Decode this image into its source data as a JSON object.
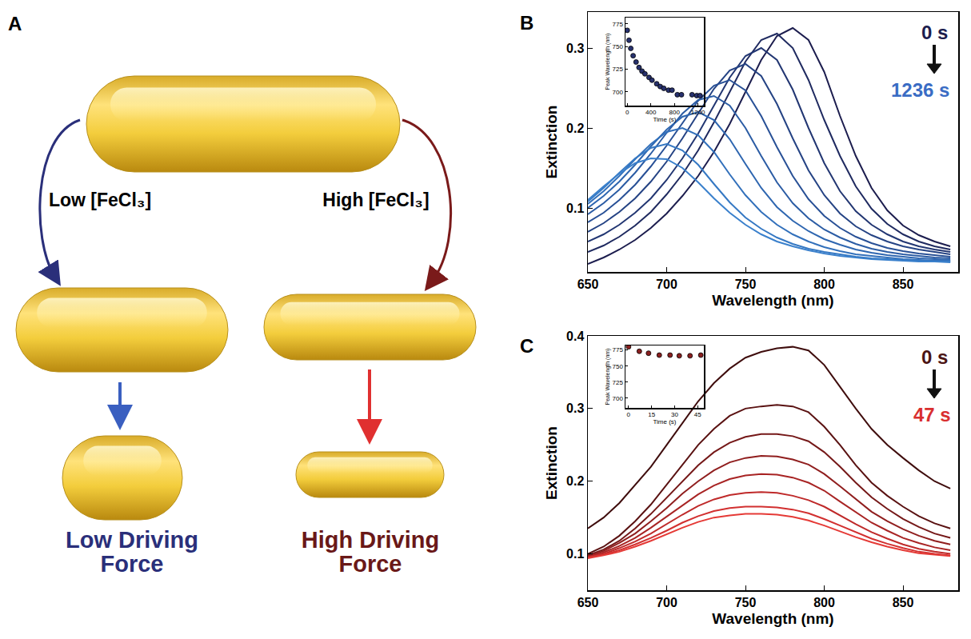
{
  "diagram": {
    "panel": "A",
    "labels": {
      "left_arrow": "Low [FeCl₃]",
      "right_arrow": "High [FeCl₃]",
      "left_result": "Low Driving Force",
      "right_result": "High Driving Force"
    }
  },
  "chart_data": [
    {
      "type": "line",
      "panel": "B",
      "xlabel": "Wavelength (nm)",
      "ylabel": "Extinction",
      "x": [
        650,
        660,
        670,
        680,
        690,
        700,
        710,
        720,
        730,
        740,
        750,
        760,
        770,
        780,
        790,
        800,
        810,
        820,
        830,
        840,
        850,
        860,
        870,
        880
      ],
      "xlim": [
        650,
        885
      ],
      "xticks": [
        650,
        700,
        750,
        800,
        850
      ],
      "ylim": [
        0.02,
        0.345
      ],
      "yticks": [
        0.1,
        0.2,
        0.3
      ],
      "grid": false,
      "series": [
        {
          "color": "#1c1d4e",
          "values": [
            0.03,
            0.038,
            0.048,
            0.06,
            0.075,
            0.093,
            0.115,
            0.14,
            0.17,
            0.205,
            0.245,
            0.285,
            0.315,
            0.325,
            0.31,
            0.27,
            0.215,
            0.165,
            0.125,
            0.097,
            0.078,
            0.066,
            0.058,
            0.052
          ]
        },
        {
          "color": "#1f2a60",
          "values": [
            0.045,
            0.053,
            0.064,
            0.078,
            0.095,
            0.117,
            0.142,
            0.172,
            0.207,
            0.245,
            0.283,
            0.31,
            0.318,
            0.3,
            0.26,
            0.21,
            0.165,
            0.127,
            0.099,
            0.08,
            0.067,
            0.058,
            0.052,
            0.048
          ]
        },
        {
          "color": "#223672",
          "values": [
            0.058,
            0.067,
            0.079,
            0.094,
            0.112,
            0.135,
            0.162,
            0.193,
            0.228,
            0.263,
            0.29,
            0.3,
            0.285,
            0.248,
            0.2,
            0.156,
            0.121,
            0.096,
            0.079,
            0.067,
            0.058,
            0.052,
            0.048,
            0.045
          ]
        },
        {
          "color": "#254384",
          "values": [
            0.07,
            0.081,
            0.095,
            0.112,
            0.133,
            0.158,
            0.187,
            0.218,
            0.249,
            0.272,
            0.28,
            0.265,
            0.23,
            0.187,
            0.147,
            0.116,
            0.093,
            0.077,
            0.066,
            0.058,
            0.052,
            0.048,
            0.045,
            0.042
          ]
        },
        {
          "color": "#285096",
          "values": [
            0.082,
            0.094,
            0.11,
            0.129,
            0.152,
            0.178,
            0.206,
            0.234,
            0.253,
            0.26,
            0.247,
            0.215,
            0.176,
            0.14,
            0.111,
            0.09,
            0.075,
            0.064,
            0.056,
            0.05,
            0.046,
            0.043,
            0.041,
            0.039
          ]
        },
        {
          "color": "#2b5ca4",
          "values": [
            0.092,
            0.106,
            0.123,
            0.144,
            0.168,
            0.194,
            0.218,
            0.235,
            0.24,
            0.228,
            0.2,
            0.165,
            0.132,
            0.106,
            0.087,
            0.073,
            0.063,
            0.055,
            0.049,
            0.045,
            0.042,
            0.04,
            0.038,
            0.037
          ]
        },
        {
          "color": "#2e66b0",
          "values": [
            0.1,
            0.115,
            0.133,
            0.154,
            0.177,
            0.198,
            0.214,
            0.22,
            0.21,
            0.186,
            0.155,
            0.125,
            0.101,
            0.084,
            0.071,
            0.061,
            0.054,
            0.048,
            0.044,
            0.041,
            0.039,
            0.037,
            0.036,
            0.035
          ]
        },
        {
          "color": "#3270bb",
          "values": [
            0.105,
            0.121,
            0.14,
            0.161,
            0.18,
            0.195,
            0.2,
            0.191,
            0.17,
            0.142,
            0.116,
            0.095,
            0.079,
            0.067,
            0.058,
            0.051,
            0.046,
            0.042,
            0.04,
            0.038,
            0.036,
            0.035,
            0.034,
            0.034
          ]
        },
        {
          "color": "#3578c3",
          "values": [
            0.108,
            0.125,
            0.144,
            0.162,
            0.175,
            0.18,
            0.172,
            0.154,
            0.13,
            0.107,
            0.088,
            0.074,
            0.063,
            0.055,
            0.049,
            0.045,
            0.042,
            0.039,
            0.037,
            0.036,
            0.035,
            0.034,
            0.033,
            0.033
          ]
        },
        {
          "color": "#3a80cc",
          "values": [
            0.11,
            0.127,
            0.143,
            0.156,
            0.162,
            0.161,
            0.15,
            0.132,
            0.112,
            0.094,
            0.079,
            0.067,
            0.058,
            0.052,
            0.047,
            0.043,
            0.04,
            0.038,
            0.036,
            0.035,
            0.034,
            0.033,
            0.033,
            0.032
          ]
        }
      ],
      "annotations": [
        {
          "text": "0 s",
          "color": "#1c1d4e"
        },
        {
          "text": "1236 s",
          "color": "#3a6cc4"
        }
      ],
      "inset": {
        "type": "scatter",
        "xlabel": "Time (s)",
        "ylabel": "Peak Wavelength (nm)",
        "x": [
          0,
          30,
          60,
          100,
          150,
          200,
          250,
          300,
          370,
          420,
          500,
          560,
          620,
          700,
          760,
          850,
          920,
          1100,
          1180,
          1236
        ],
        "values": [
          768,
          757,
          748,
          740,
          733,
          727,
          723,
          720,
          716,
          713,
          709,
          706,
          704,
          702,
          702,
          697,
          697,
          697,
          696,
          696
        ],
        "color": "#27316e",
        "marker": "circle",
        "xlim": [
          -30,
          1300
        ],
        "xticks": [
          0,
          400,
          800,
          1200
        ],
        "ylim": [
          685,
          782
        ],
        "yticks": [
          700,
          725,
          750,
          775
        ],
        "grid": false
      }
    },
    {
      "type": "line",
      "panel": "C",
      "xlabel": "Wavelength (nm)",
      "ylabel": "Extinction",
      "x": [
        650,
        660,
        670,
        680,
        690,
        700,
        710,
        720,
        730,
        740,
        750,
        760,
        770,
        780,
        790,
        800,
        810,
        820,
        830,
        840,
        850,
        860,
        870,
        880
      ],
      "xlim": [
        650,
        885
      ],
      "xticks": [
        650,
        700,
        750,
        800,
        850
      ],
      "ylim": [
        0.05,
        0.4
      ],
      "yticks": [
        0.1,
        0.2,
        0.3,
        0.4
      ],
      "grid": false,
      "series": [
        {
          "color": "#3f0d0d",
          "values": [
            0.135,
            0.15,
            0.17,
            0.195,
            0.22,
            0.25,
            0.28,
            0.31,
            0.335,
            0.355,
            0.37,
            0.378,
            0.383,
            0.385,
            0.38,
            0.36,
            0.33,
            0.3,
            0.272,
            0.25,
            0.232,
            0.215,
            0.2,
            0.19
          ]
        },
        {
          "color": "#5a1212",
          "values": [
            0.1,
            0.11,
            0.125,
            0.145,
            0.168,
            0.195,
            0.222,
            0.25,
            0.272,
            0.29,
            0.3,
            0.303,
            0.305,
            0.303,
            0.295,
            0.275,
            0.25,
            0.222,
            0.198,
            0.18,
            0.165,
            0.152,
            0.142,
            0.135
          ]
        },
        {
          "color": "#751818",
          "values": [
            0.098,
            0.106,
            0.118,
            0.135,
            0.155,
            0.177,
            0.2,
            0.222,
            0.24,
            0.253,
            0.261,
            0.265,
            0.265,
            0.262,
            0.255,
            0.24,
            0.22,
            0.198,
            0.178,
            0.162,
            0.148,
            0.137,
            0.128,
            0.122
          ]
        },
        {
          "color": "#901e1e",
          "values": [
            0.097,
            0.104,
            0.115,
            0.128,
            0.145,
            0.163,
            0.183,
            0.2,
            0.215,
            0.226,
            0.232,
            0.235,
            0.234,
            0.23,
            0.223,
            0.21,
            0.193,
            0.175,
            0.158,
            0.145,
            0.134,
            0.125,
            0.118,
            0.113
          ]
        },
        {
          "color": "#a82424",
          "values": [
            0.096,
            0.102,
            0.111,
            0.122,
            0.136,
            0.151,
            0.167,
            0.182,
            0.194,
            0.203,
            0.208,
            0.21,
            0.209,
            0.205,
            0.198,
            0.187,
            0.172,
            0.157,
            0.143,
            0.132,
            0.122,
            0.115,
            0.109,
            0.105
          ]
        },
        {
          "color": "#bf2a2a",
          "values": [
            0.095,
            0.1,
            0.108,
            0.117,
            0.128,
            0.141,
            0.154,
            0.166,
            0.175,
            0.181,
            0.184,
            0.185,
            0.184,
            0.18,
            0.174,
            0.165,
            0.153,
            0.141,
            0.13,
            0.121,
            0.113,
            0.107,
            0.103,
            0.1
          ]
        },
        {
          "color": "#d23030",
          "values": [
            0.095,
            0.099,
            0.105,
            0.113,
            0.122,
            0.132,
            0.143,
            0.152,
            0.159,
            0.163,
            0.165,
            0.165,
            0.164,
            0.161,
            0.156,
            0.148,
            0.139,
            0.13,
            0.121,
            0.114,
            0.108,
            0.103,
            0.1,
            0.098
          ]
        },
        {
          "color": "#e53a36",
          "values": [
            0.094,
            0.098,
            0.103,
            0.11,
            0.118,
            0.127,
            0.136,
            0.144,
            0.15,
            0.153,
            0.155,
            0.155,
            0.154,
            0.151,
            0.146,
            0.139,
            0.131,
            0.123,
            0.116,
            0.11,
            0.105,
            0.101,
            0.099,
            0.097
          ]
        }
      ],
      "annotations": [
        {
          "text": "0 s",
          "color": "#4a1414"
        },
        {
          "text": "47 s",
          "color": "#d92f2f"
        }
      ],
      "inset": {
        "type": "scatter",
        "xlabel": "Time (s)",
        "ylabel": "Peak Wavelength (nm)",
        "x": [
          0,
          7,
          13,
          20,
          27,
          33,
          40,
          47
        ],
        "values": [
          780,
          773,
          770,
          767,
          767,
          766,
          766,
          767
        ],
        "color": "#8a1f1f",
        "marker": "circle",
        "xlim": [
          -2,
          49
        ],
        "xticks": [
          0,
          15,
          30,
          45
        ],
        "ylim": [
          685,
          782
        ],
        "yticks": [
          700,
          725,
          750,
          775
        ],
        "grid": false
      }
    }
  ]
}
